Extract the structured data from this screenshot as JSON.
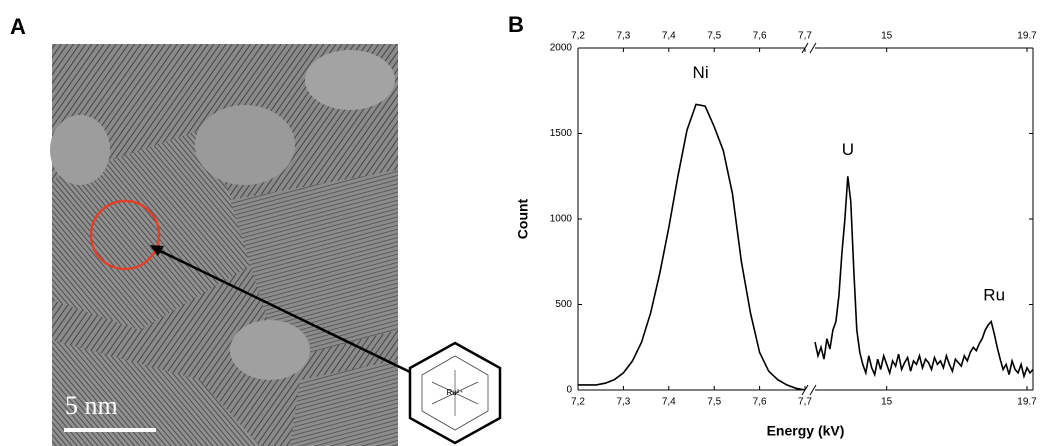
{
  "panel_a": {
    "label": "A",
    "scale_bar": "5 nm",
    "inset_label": "Ru²⁺"
  },
  "chart_data": {
    "type": "line",
    "label": "B",
    "x_label": "Energy (kV)",
    "y_label": "Count",
    "color": "#000000",
    "ylim": [
      0,
      2000
    ],
    "yticks": [
      0,
      500,
      1000,
      1500,
      2000
    ],
    "annotations": [
      {
        "text": "Ni",
        "x": 7.47,
        "y": 1850,
        "segment": 0
      },
      {
        "text": "U",
        "x": 13.7,
        "y": 1400,
        "segment": 1
      },
      {
        "text": "Ru",
        "x": 18.6,
        "y": 550,
        "segment": 1
      }
    ],
    "segments": [
      {
        "xlim": [
          7.2,
          7.7
        ],
        "xticks": [
          {
            "value": 7.2,
            "label": "7,2"
          },
          {
            "value": 7.3,
            "label": "7,3"
          },
          {
            "value": 7.4,
            "label": "7,4"
          },
          {
            "value": 7.5,
            "label": "7,5"
          },
          {
            "value": 7.6,
            "label": "7,6"
          },
          {
            "value": 7.7,
            "label": "7,7"
          }
        ],
        "x": [
          7.2,
          7.22,
          7.24,
          7.26,
          7.28,
          7.3,
          7.32,
          7.34,
          7.36,
          7.38,
          7.4,
          7.42,
          7.44,
          7.46,
          7.48,
          7.5,
          7.52,
          7.54,
          7.56,
          7.58,
          7.6,
          7.62,
          7.64,
          7.66,
          7.68,
          7.7
        ],
        "values": [
          30,
          30,
          30,
          40,
          60,
          100,
          170,
          280,
          450,
          680,
          950,
          1250,
          1520,
          1670,
          1660,
          1540,
          1400,
          1150,
          750,
          450,
          220,
          110,
          60,
          30,
          10,
          0
        ]
      },
      {
        "xlim": [
          12.6,
          19.9
        ],
        "xticks": [
          15,
          19.7
        ],
        "x": [
          12.6,
          12.7,
          12.8,
          12.9,
          13.0,
          13.1,
          13.2,
          13.3,
          13.4,
          13.5,
          13.6,
          13.7,
          13.8,
          13.9,
          14.0,
          14.1,
          14.2,
          14.3,
          14.4,
          14.5,
          14.6,
          14.7,
          14.8,
          14.9,
          15.0,
          15.1,
          15.2,
          15.3,
          15.4,
          15.5,
          15.6,
          15.7,
          15.8,
          15.9,
          16.0,
          16.1,
          16.2,
          16.3,
          16.4,
          16.5,
          16.6,
          16.7,
          16.8,
          16.9,
          17.0,
          17.1,
          17.2,
          17.3,
          17.4,
          17.5,
          17.6,
          17.7,
          17.8,
          17.9,
          18.0,
          18.1,
          18.2,
          18.3,
          18.4,
          18.5,
          18.6,
          18.7,
          18.8,
          18.9,
          19.0,
          19.1,
          19.2,
          19.3,
          19.4,
          19.5,
          19.6,
          19.7,
          19.8,
          19.9
        ],
        "values": [
          280,
          200,
          250,
          180,
          300,
          240,
          350,
          400,
          550,
          800,
          1000,
          1250,
          1100,
          700,
          350,
          220,
          150,
          100,
          200,
          130,
          90,
          180,
          120,
          200,
          150,
          100,
          170,
          140,
          210,
          120,
          160,
          190,
          110,
          170,
          150,
          200,
          130,
          180,
          160,
          120,
          190,
          150,
          170,
          130,
          200,
          150,
          110,
          180,
          160,
          140,
          200,
          170,
          220,
          250,
          230,
          270,
          300,
          350,
          380,
          400,
          330,
          250,
          180,
          120,
          150,
          90,
          170,
          120,
          100,
          150,
          80,
          130,
          100,
          120
        ]
      }
    ]
  }
}
